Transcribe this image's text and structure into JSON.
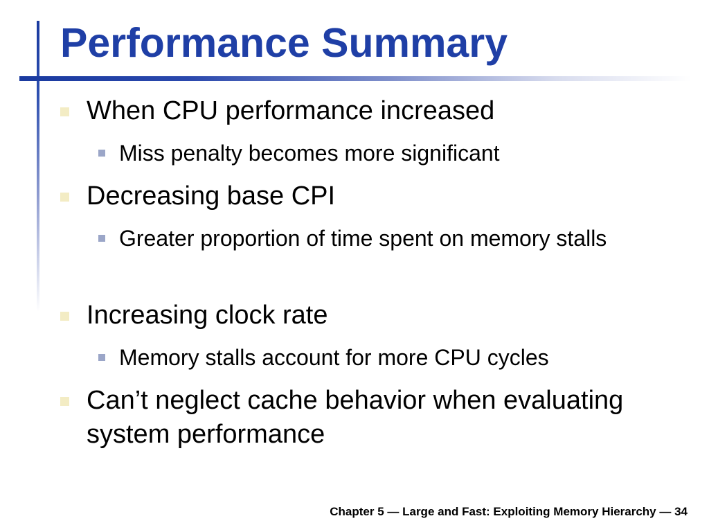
{
  "slide": {
    "title": "Performance Summary",
    "bullets": [
      {
        "text": "When CPU performance increased",
        "subs": [
          "Miss penalty becomes more significant"
        ]
      },
      {
        "text": "Decreasing base CPI",
        "subs": [
          "Greater proportion of time spent on memory stalls"
        ]
      },
      {
        "text": "Increasing clock rate",
        "subs": [
          "Memory stalls account for more CPU cycles"
        ]
      },
      {
        "text": "Can’t neglect cache behavior when evaluating system performance",
        "subs": []
      }
    ],
    "footer": "Chapter 5 — Large and Fast: Exploiting Memory Hierarchy — 34"
  },
  "colors": {
    "title": "#1f3fa6",
    "accent_bar": "#1a3a9f",
    "bullet_level1": "#f3ecc4",
    "bullet_level2": "#9ba6c8"
  }
}
